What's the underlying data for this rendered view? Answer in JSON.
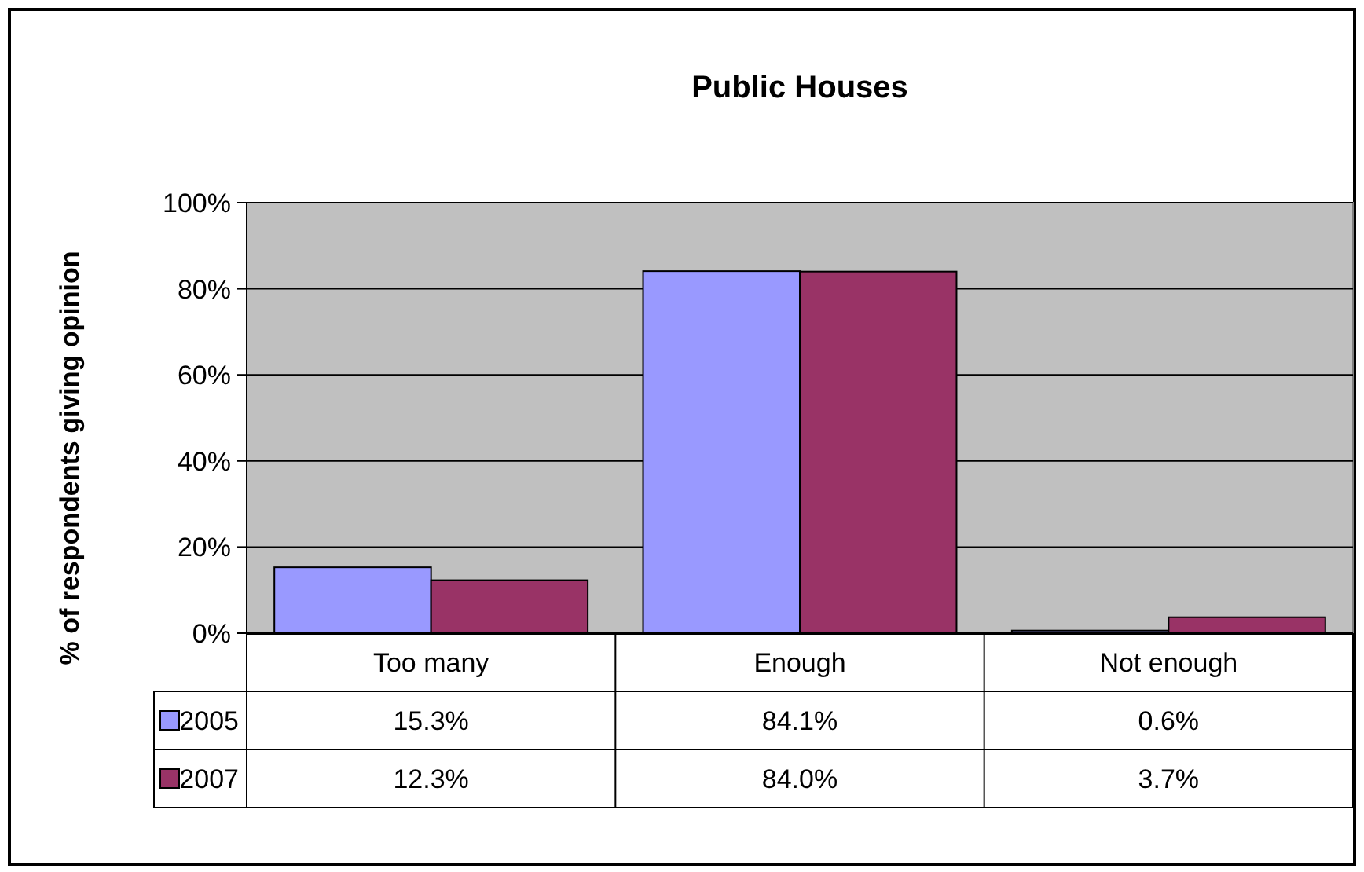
{
  "chart_data": {
    "type": "bar",
    "title": "Public Houses",
    "ylabel": "% of respondents giving opinion",
    "categories": [
      "Too many",
      "Enough",
      "Not enough"
    ],
    "series": [
      {
        "name": "2005",
        "color": "#9999ff",
        "values": [
          15.3,
          84.1,
          0.6
        ],
        "value_labels": [
          "15.3%",
          "84.1%",
          "0.6%"
        ]
      },
      {
        "name": "2007",
        "color": "#993366",
        "values": [
          12.3,
          84.0,
          3.7
        ],
        "value_labels": [
          "12.3%",
          "84.0%",
          "3.7%"
        ]
      }
    ],
    "ylim": [
      0,
      100
    ],
    "yticks": [
      {
        "value": 0,
        "label": "0%"
      },
      {
        "value": 20,
        "label": "20%"
      },
      {
        "value": 40,
        "label": "40%"
      },
      {
        "value": 60,
        "label": "60%"
      },
      {
        "value": 80,
        "label": "80%"
      },
      {
        "value": 100,
        "label": "100%"
      }
    ],
    "grid": "y",
    "legend": "bottom left"
  }
}
